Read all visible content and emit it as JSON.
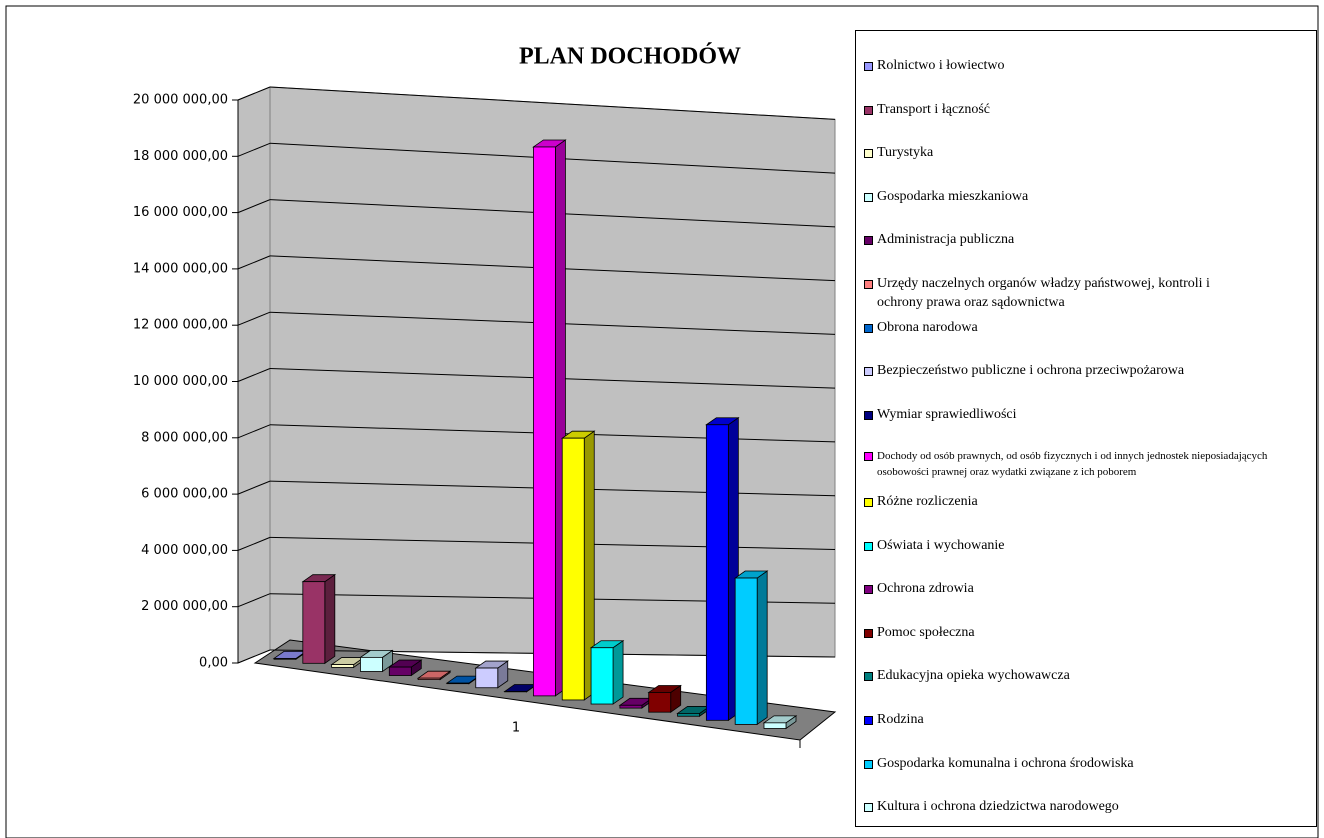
{
  "chart_data": {
    "type": "bar3d",
    "title": "PLAN DOCHODÓW",
    "categories": [
      "1"
    ],
    "ylim": [
      0,
      20000000
    ],
    "yticks": [
      {
        "value": 0,
        "label": "0,00"
      },
      {
        "value": 2000000,
        "label": "2 000 000,00"
      },
      {
        "value": 4000000,
        "label": "4 000 000,00"
      },
      {
        "value": 6000000,
        "label": "6 000 000,00"
      },
      {
        "value": 8000000,
        "label": "8 000 000,00"
      },
      {
        "value": 10000000,
        "label": "10 000 000,00"
      },
      {
        "value": 12000000,
        "label": "12 000 000,00"
      },
      {
        "value": 14000000,
        "label": "14 000 000,00"
      },
      {
        "value": 16000000,
        "label": "16 000 000,00"
      },
      {
        "value": 18000000,
        "label": "18 000 000,00"
      },
      {
        "value": 20000000,
        "label": "20 000 000,00"
      }
    ],
    "grid": true,
    "legend": "right",
    "series": [
      {
        "name": "Rolnictwo i łowiectwo",
        "color": "#9999ff",
        "values": [
          30000
        ]
      },
      {
        "name": "Transport i łączność",
        "color": "#993366",
        "values": [
          2900000
        ]
      },
      {
        "name": "Turystyka",
        "color": "#ffffcc",
        "values": [
          100000
        ]
      },
      {
        "name": "Gospodarka mieszkaniowa",
        "color": "#ccffff",
        "values": [
          500000
        ]
      },
      {
        "name": "Administracja publiczna",
        "color": "#660066",
        "values": [
          300000
        ]
      },
      {
        "name": "Urzędy naczelnych organów władzy państwowej, kontroli i ochrony prawa oraz sądownictwa",
        "color": "#ff8080",
        "values": [
          50000
        ]
      },
      {
        "name": "Obrona narodowa",
        "color": "#0066cc",
        "values": [
          20000
        ]
      },
      {
        "name": "Bezpieczeństwo publiczne i ochrona przeciwpożarowa",
        "color": "#ccccff",
        "values": [
          700000
        ]
      },
      {
        "name": "Wymiar sprawiedliwości",
        "color": "#000080",
        "values": [
          10000
        ]
      },
      {
        "name": "Dochody od osób prawnych, od osób fizycznych i od innych jednostek nieposiadających osobowości prawnej oraz wydatki związane z ich poborem",
        "color": "#ff00ff",
        "values": [
          19500000
        ]
      },
      {
        "name": "Różne rozliczenia",
        "color": "#ffff00",
        "values": [
          9300000
        ]
      },
      {
        "name": "Oświata i wychowanie",
        "color": "#00ffff",
        "values": [
          2000000
        ]
      },
      {
        "name": "Ochrona zdrowia",
        "color": "#800080",
        "values": [
          100000
        ]
      },
      {
        "name": "Pomoc społeczna",
        "color": "#800000",
        "values": [
          700000
        ]
      },
      {
        "name": "Edukacyjna opieka wychowawcza",
        "color": "#008080",
        "values": [
          100000
        ]
      },
      {
        "name": "Rodzina",
        "color": "#0000ff",
        "values": [
          10500000
        ]
      },
      {
        "name": "Gospodarka komunalna i ochrona środowiska",
        "color": "#00ccff",
        "values": [
          5200000
        ]
      },
      {
        "name": "Kultura i ochrona dziedzictwa narodowego",
        "color": "#ccffff",
        "values": [
          200000
        ]
      }
    ]
  }
}
